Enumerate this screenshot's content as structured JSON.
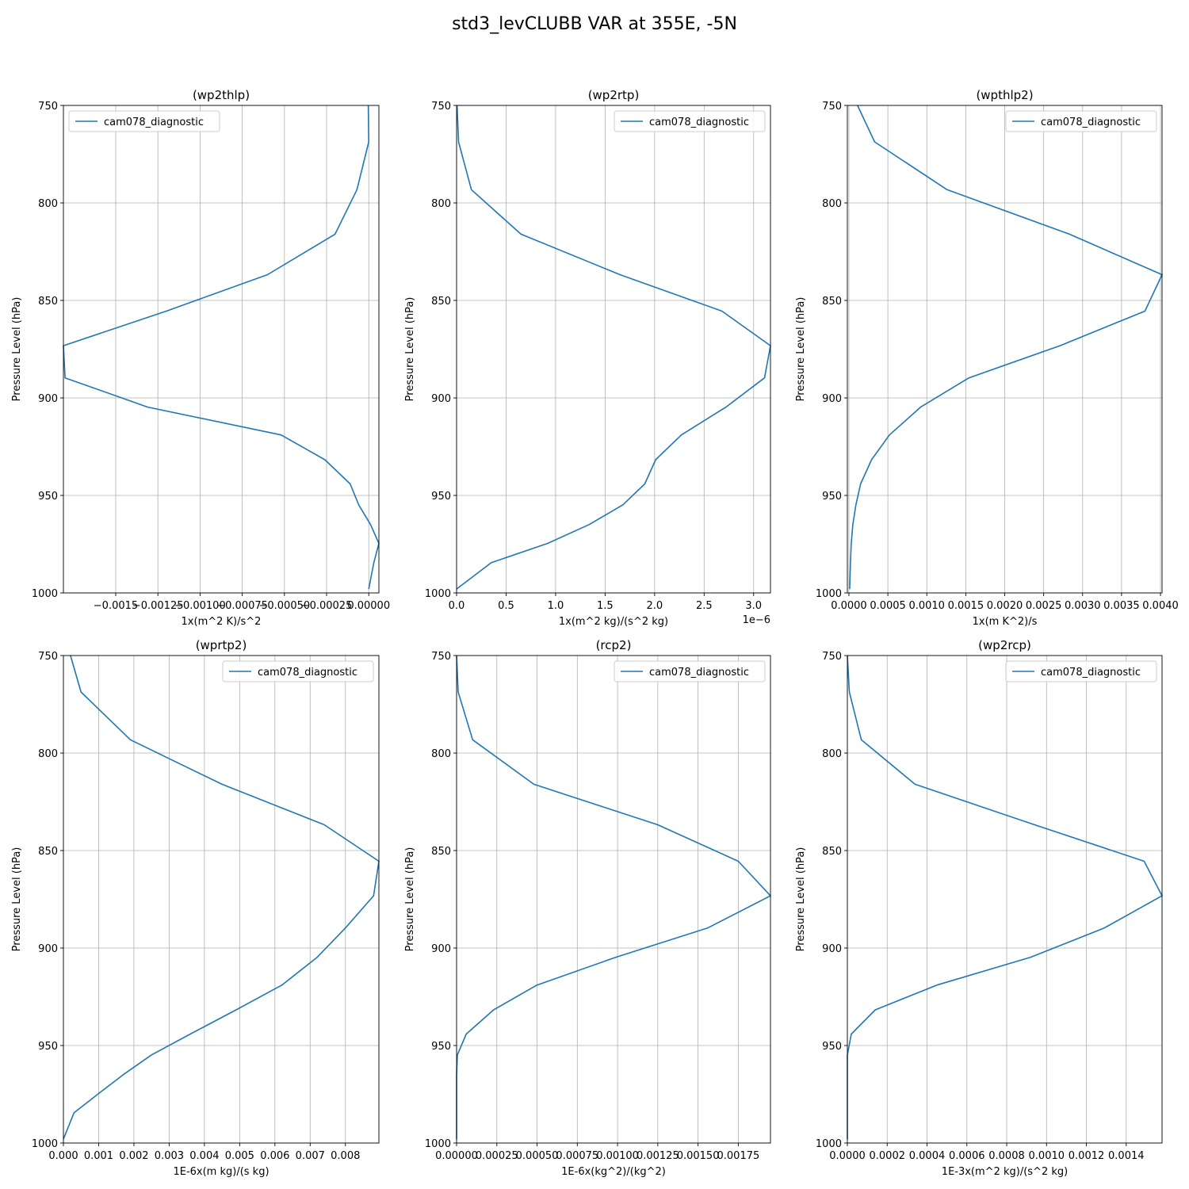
{
  "figure": {
    "suptitle": "std3_levCLUBB VAR at 355E, -5N"
  },
  "colors": {
    "series": "#1f77b4",
    "grid": "#b0b0b0",
    "axis": "#000000"
  },
  "chart_data": [
    {
      "type": "line",
      "title": "(wp2thlp)",
      "xlabel": "1x(m^2 K)/s^2",
      "ylabel": "Pressure Level (hPa)",
      "xlim": [
        -0.00181,
        6e-05
      ],
      "ylim": [
        1000,
        750
      ],
      "y_inverted": true,
      "xticks": [
        -0.0015,
        -0.00125,
        -0.001,
        -0.00075,
        -0.0005,
        -0.00025,
        0
      ],
      "xtick_labels": [
        "−0.0015",
        "−0.00125",
        "−0.00100",
        "−0.00075",
        "−0.00050",
        "−0.00025",
        "0.00000"
      ],
      "yticks": [
        750,
        800,
        850,
        900,
        950,
        1000
      ],
      "ytick_labels": [
        "750",
        "800",
        "850",
        "900",
        "950",
        "1000"
      ],
      "grid": true,
      "legend": "upper left",
      "series": [
        {
          "name": "cam078_diagnostic",
          "x": [
            -3e-06,
            0.0,
            -7e-05,
            -0.0002,
            -0.0006,
            -0.0012,
            -0.00181,
            -0.0018,
            -0.00131,
            -0.00052,
            -0.00026,
            -0.00011,
            -6e-05,
            1e-05,
            6e-05,
            3e-05,
            0.0
          ],
          "y": [
            750,
            768.7,
            793.2,
            816.0,
            836.8,
            855.5,
            873.2,
            889.7,
            904.7,
            919.0,
            931.7,
            944.1,
            954.8,
            964.9,
            974.6,
            984.5,
            998.0
          ]
        }
      ]
    },
    {
      "type": "line",
      "title": "(wp2rtp)",
      "xlabel": "1x(m^2 kg)/(s^2 kg)",
      "ylabel": "Pressure Level (hPa)",
      "offset_text": "1e−6",
      "xlim": [
        0,
        3.17
      ],
      "ylim": [
        1000,
        750
      ],
      "y_inverted": true,
      "xticks": [
        0,
        0.5,
        1.0,
        1.5,
        2.0,
        2.5,
        3.0
      ],
      "xtick_labels": [
        "0.0",
        "0.5",
        "1.0",
        "1.5",
        "2.0",
        "2.5",
        "3.0"
      ],
      "yticks": [
        750,
        800,
        850,
        900,
        950,
        1000
      ],
      "ytick_labels": [
        "750",
        "800",
        "850",
        "900",
        "950",
        "1000"
      ],
      "grid": true,
      "legend": "upper right",
      "series": [
        {
          "name": "cam078_diagnostic",
          "x": [
            0.005,
            0.02,
            0.15,
            0.65,
            1.65,
            2.68,
            3.17,
            3.11,
            2.72,
            2.27,
            2.01,
            1.9,
            1.68,
            1.34,
            0.92,
            0.35,
            0.0
          ],
          "y": [
            750,
            768.7,
            793.2,
            816.0,
            836.8,
            855.5,
            873.2,
            889.7,
            904.7,
            919.0,
            931.7,
            944.1,
            954.8,
            964.9,
            974.6,
            984.5,
            998.0
          ]
        }
      ]
    },
    {
      "type": "line",
      "title": "(wpthlp2)",
      "xlabel": "1x(m K^2)/s",
      "ylabel": "Pressure Level (hPa)",
      "xlim": [
        -2e-05,
        0.00402
      ],
      "ylim": [
        1000,
        750
      ],
      "y_inverted": true,
      "xticks": [
        0,
        0.0005,
        0.001,
        0.0015,
        0.002,
        0.0025,
        0.003,
        0.0035,
        0.004
      ],
      "xtick_labels": [
        "0.0000",
        "0.0005",
        "0.0010",
        "0.0015",
        "0.0020",
        "0.0025",
        "0.0030",
        "0.0035",
        "0.0040"
      ],
      "yticks": [
        750,
        800,
        850,
        900,
        950,
        1000
      ],
      "ytick_labels": [
        "750",
        "800",
        "850",
        "900",
        "950",
        "1000"
      ],
      "grid": true,
      "legend": "upper right",
      "series": [
        {
          "name": "cam078_diagnostic",
          "x": [
            0.00011,
            0.00033,
            0.00126,
            0.00283,
            0.00402,
            0.0038,
            0.00271,
            0.00154,
            0.00092,
            0.00052,
            0.00029,
            0.00015,
            9e-05,
            5e-05,
            3e-05,
            2e-05,
            1e-05
          ],
          "y": [
            750,
            768.7,
            793.2,
            816.0,
            836.8,
            855.5,
            873.2,
            889.7,
            904.7,
            919.0,
            931.7,
            944.1,
            954.8,
            964.9,
            974.6,
            984.5,
            998.0
          ]
        }
      ]
    },
    {
      "type": "line",
      "title": "(wprtp2)",
      "xlabel": "1E-6x(m kg)/(s kg)",
      "ylabel": "Pressure Level (hPa)",
      "xlim": [
        0,
        0.00895
      ],
      "ylim": [
        1000,
        750
      ],
      "y_inverted": true,
      "xticks": [
        0,
        0.001,
        0.002,
        0.003,
        0.004,
        0.005,
        0.006,
        0.007,
        0.008
      ],
      "xtick_labels": [
        "0.000",
        "0.001",
        "0.002",
        "0.003",
        "0.004",
        "0.005",
        "0.006",
        "0.007",
        "0.008"
      ],
      "yticks": [
        750,
        800,
        850,
        900,
        950,
        1000
      ],
      "ytick_labels": [
        "750",
        "800",
        "850",
        "900",
        "950",
        "1000"
      ],
      "grid": true,
      "legend": "upper right",
      "series": [
        {
          "name": "cam078_diagnostic",
          "x": [
            0.0002,
            0.0005,
            0.0019,
            0.0045,
            0.0074,
            0.00895,
            0.0088,
            0.008,
            0.0072,
            0.0062,
            0.0049,
            0.0036,
            0.0025,
            0.0017,
            0.001,
            0.0003,
            0.0
          ],
          "y": [
            750,
            768.7,
            793.2,
            816.0,
            836.8,
            855.5,
            873.2,
            889.7,
            904.7,
            919.0,
            931.7,
            944.1,
            954.8,
            964.9,
            974.6,
            984.5,
            998.0
          ]
        }
      ]
    },
    {
      "type": "line",
      "title": "(rcp2)",
      "xlabel": "1E-6x(kg^2)/(kg^2)",
      "ylabel": "Pressure Level (hPa)",
      "xlim": [
        0,
        0.00195
      ],
      "ylim": [
        1000,
        750
      ],
      "y_inverted": true,
      "xticks": [
        0,
        0.00025,
        0.0005,
        0.00075,
        0.001,
        0.00125,
        0.0015,
        0.00175
      ],
      "xtick_labels": [
        "0.00000",
        "0.00025",
        "0.00050",
        "0.00075",
        "0.00100",
        "0.00125",
        "0.00150",
        "0.00175"
      ],
      "yticks": [
        750,
        800,
        850,
        900,
        950,
        1000
      ],
      "ytick_labels": [
        "750",
        "800",
        "850",
        "900",
        "950",
        "1000"
      ],
      "grid": true,
      "legend": "upper right",
      "series": [
        {
          "name": "cam078_diagnostic",
          "x": [
            0.0,
            1e-05,
            0.0001,
            0.00048,
            0.00125,
            0.00175,
            0.00195,
            0.00156,
            0.00099,
            0.0005,
            0.00023,
            6e-05,
            5e-06,
            0.0,
            0.0,
            0.0,
            0.0
          ],
          "y": [
            750,
            768.7,
            793.2,
            816.0,
            836.8,
            855.5,
            873.2,
            889.7,
            904.7,
            919.0,
            931.7,
            944.1,
            954.8,
            964.9,
            974.6,
            984.5,
            998.0
          ]
        }
      ]
    },
    {
      "type": "line",
      "title": "(wp2rcp)",
      "xlabel": "1E-3x(m^2 kg)/(s^2 kg)",
      "ylabel": "Pressure Level (hPa)",
      "xlim": [
        0,
        0.00158
      ],
      "ylim": [
        1000,
        750
      ],
      "y_inverted": true,
      "xticks": [
        0,
        0.0002,
        0.0004,
        0.0006,
        0.0008,
        0.001,
        0.0012,
        0.0014
      ],
      "xtick_labels": [
        "0.0000",
        "0.0002",
        "0.0004",
        "0.0006",
        "0.0008",
        "0.0010",
        "0.0012",
        "0.0014"
      ],
      "yticks": [
        750,
        800,
        850,
        900,
        950,
        1000
      ],
      "ytick_labels": [
        "750",
        "800",
        "850",
        "900",
        "950",
        "1000"
      ],
      "grid": true,
      "legend": "upper right",
      "series": [
        {
          "name": "cam078_diagnostic",
          "x": [
            0.0,
            1e-05,
            7e-05,
            0.00034,
            0.00094,
            0.00149,
            0.00158,
            0.00129,
            0.00092,
            0.00045,
            0.00014,
            2e-05,
            0.0,
            0.0,
            0.0,
            0.0,
            0.0
          ],
          "y": [
            750,
            768.7,
            793.2,
            816.0,
            836.8,
            855.5,
            873.2,
            889.7,
            904.7,
            919.0,
            931.7,
            944.1,
            954.8,
            964.9,
            974.6,
            984.5,
            998.0
          ]
        }
      ]
    }
  ]
}
